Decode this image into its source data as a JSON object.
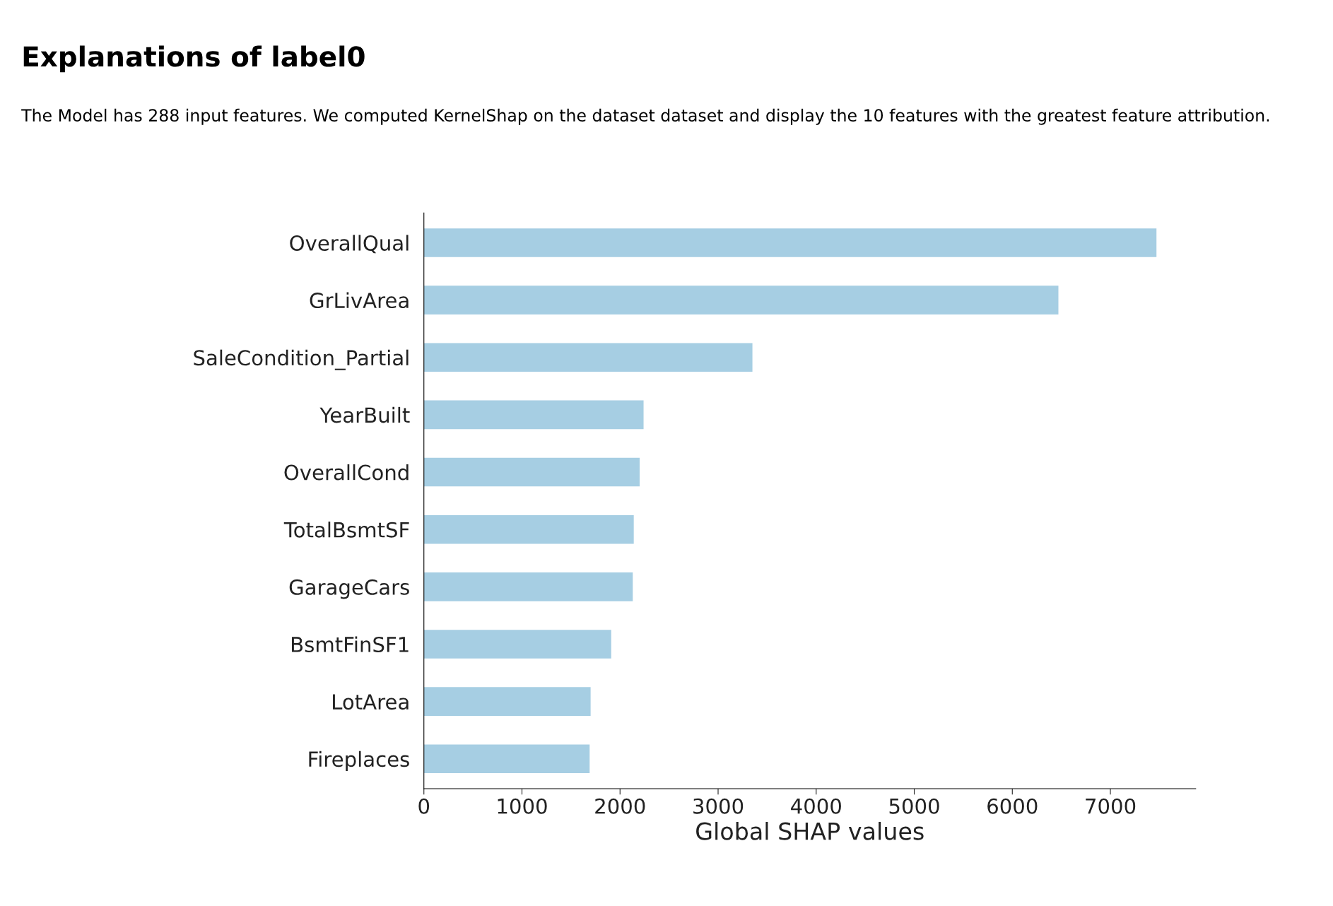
{
  "chart_data": {
    "type": "bar",
    "orientation": "horizontal",
    "title": "Explanations of label0",
    "subtitle": "The Model has 288 input features. We computed KernelShap on the dataset dataset and display the 10 features with the greatest feature attribution.",
    "xlabel": "Global SHAP values",
    "categories": [
      "OverallQual",
      "GrLivArea",
      "SaleCondition_Partial",
      "YearBuilt",
      "OverallCond",
      "TotalBsmtSF",
      "GarageCars",
      "BsmtFinSF1",
      "LotArea",
      "Fireplaces"
    ],
    "values": [
      7470,
      6470,
      3350,
      2240,
      2200,
      2140,
      2130,
      1910,
      1700,
      1690
    ],
    "color": "#a6cee3",
    "xlim": [
      0,
      7870
    ],
    "xticks": [
      0,
      1000,
      2000,
      3000,
      4000,
      5000,
      6000,
      7000
    ],
    "grid": false,
    "legend": false
  }
}
